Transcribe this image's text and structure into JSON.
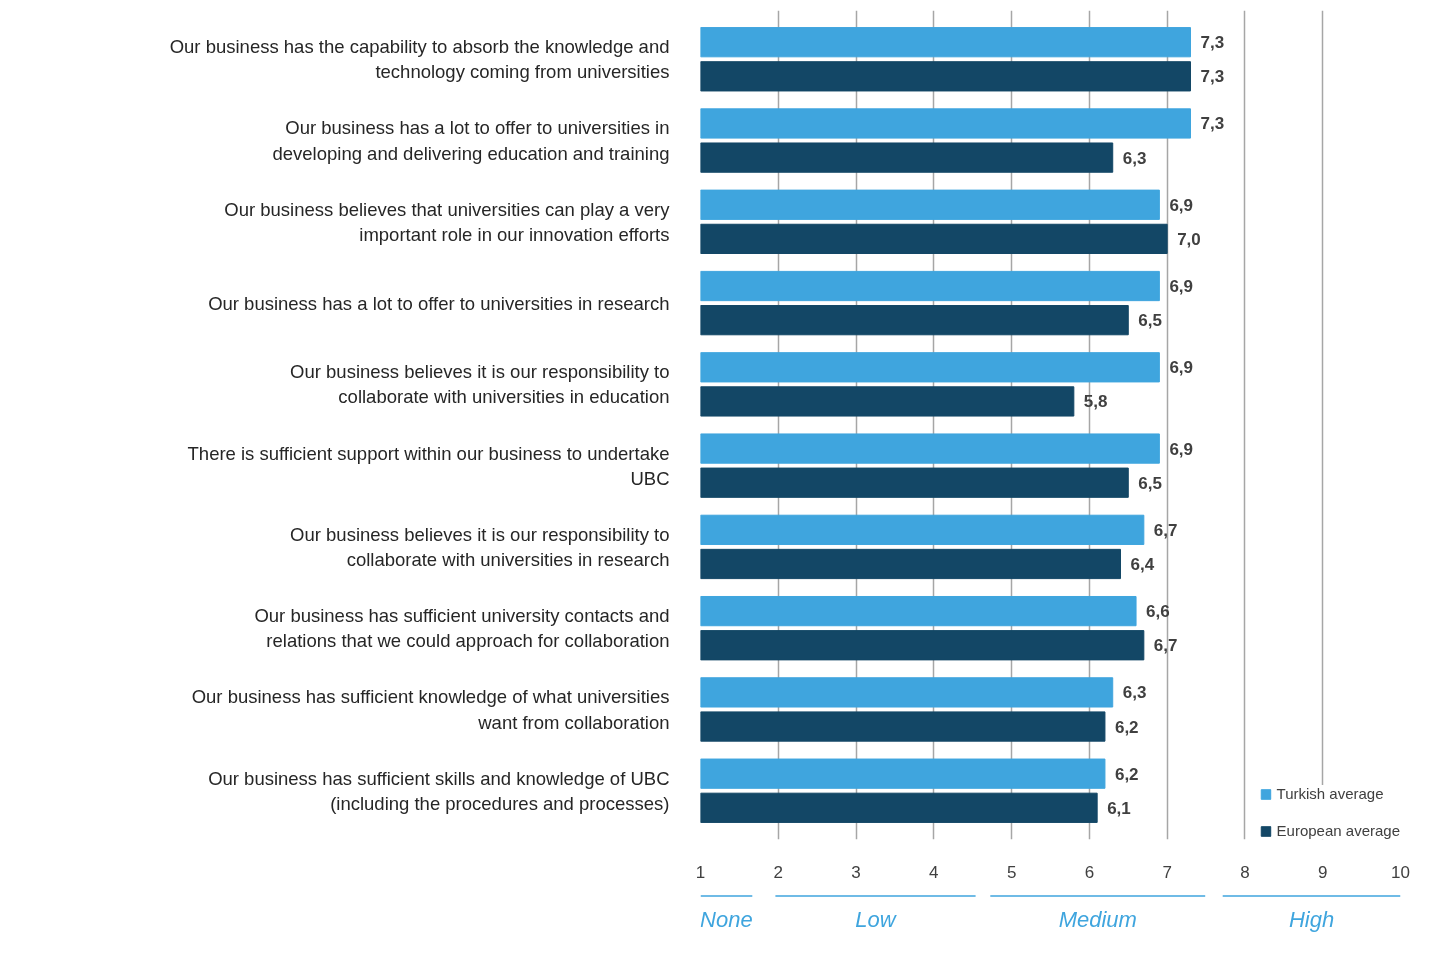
{
  "chart_data": {
    "type": "bar",
    "orientation": "horizontal",
    "categories": [
      "Our business has the capability to absorb the knowledge and technology coming from universities",
      "Our business has a lot to offer to universities in developing and delivering education and training",
      "Our business believes that universities can play a very important role in our innovation efforts",
      "Our business has a lot to offer to universities in research",
      "Our business believes it is our responsibility to collaborate with universities in education",
      "There is sufficient support within our business to undertake UBC",
      "Our business believes it is our responsibility to  collaborate with universities in research",
      "Our business has sufficient university contacts and relations that we could approach for collaboration",
      "Our business has sufficient knowledge of what universities want from collaboration",
      "Our business has sufficient skills and knowledge of UBC (including the procedures and processes)"
    ],
    "series": [
      {
        "name": "Turkish average",
        "color": "#3fa5de",
        "values": [
          7.3,
          7.3,
          6.9,
          6.9,
          6.9,
          6.9,
          6.7,
          6.6,
          6.3,
          6.2
        ],
        "value_labels": [
          "7,3",
          "7,3",
          "6,9",
          "6,9",
          "6,9",
          "6,9",
          "6,7",
          "6,6",
          "6,3",
          "6,2"
        ]
      },
      {
        "name": "European average",
        "color": "#134766",
        "values": [
          7.3,
          6.3,
          7.0,
          6.5,
          5.8,
          6.5,
          6.4,
          6.7,
          6.2,
          6.1
        ],
        "value_labels": [
          "7,3",
          "6,3",
          "7,0",
          "6,5",
          "5,8",
          "6,5",
          "6,4",
          "6,7",
          "6,2",
          "6,1"
        ]
      }
    ],
    "xlim": [
      1,
      10
    ],
    "xticks": [
      1,
      2,
      3,
      4,
      5,
      6,
      7,
      8,
      9,
      10
    ],
    "grid": "x",
    "legend": "bottom right",
    "annotations": [
      "None",
      "Low",
      "Medium",
      "High"
    ]
  }
}
